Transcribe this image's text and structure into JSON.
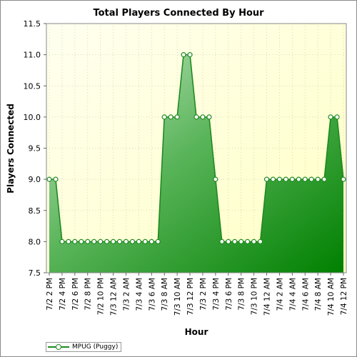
{
  "chart_data": {
    "type": "area",
    "title": "Total Players Connected By Hour",
    "xlabel": "Hour",
    "ylabel": "Players Connected",
    "ylim": [
      7.5,
      11.5
    ],
    "y_ticks": [
      "7.5",
      "8.0",
      "8.5",
      "9.0",
      "9.5",
      "10.0",
      "10.5",
      "11.0",
      "11.5"
    ],
    "x_tick_labels": [
      "7/2 2 PM",
      "7/2 4 PM",
      "7/2 6 PM",
      "7/2 8 PM",
      "7/2 10 PM",
      "7/3 12 AM",
      "7/3 2 AM",
      "7/3 4 AM",
      "7/3 6 AM",
      "7/3 8 AM",
      "7/3 10 AM",
      "7/3 12 PM",
      "7/3 2 PM",
      "7/3 4 PM",
      "7/3 6 PM",
      "7/3 8 PM",
      "7/3 10 PM",
      "7/4 12 AM",
      "7/4 2 AM",
      "7/4 4 AM",
      "7/4 6 AM",
      "7/4 8 AM",
      "7/4 10 AM",
      "7/4 12 PM"
    ],
    "grid": true,
    "legend_position": "bottom-left",
    "series": [
      {
        "name": "MPUG (Puggy)",
        "color": "#1f8a1f",
        "values": [
          9,
          9,
          8,
          8,
          8,
          8,
          8,
          8,
          8,
          8,
          8,
          8,
          8,
          8,
          8,
          8,
          8,
          8,
          10,
          10,
          10,
          11,
          11,
          10,
          10,
          10,
          9,
          8,
          8,
          8,
          8,
          8,
          8,
          8,
          9,
          9,
          9,
          9,
          9,
          9,
          9,
          9,
          9,
          9,
          10,
          10,
          9
        ]
      }
    ]
  }
}
